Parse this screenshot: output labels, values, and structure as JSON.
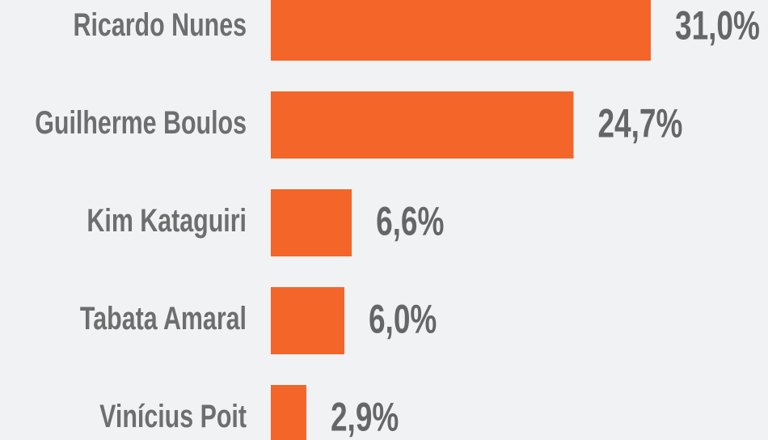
{
  "chart_data": {
    "type": "bar",
    "orientation": "horizontal",
    "categories": [
      "Ricardo Nunes",
      "Guilherme Boulos",
      "Kim Kataguiri",
      "Tabata Amaral",
      "Vinícius Poit"
    ],
    "values": [
      31.0,
      24.7,
      6.6,
      6.0,
      2.9
    ],
    "value_labels": [
      "31,0%",
      "24,7%",
      "6,6%",
      "6,0%",
      "2,9%"
    ],
    "color": "#f4652a"
  }
}
